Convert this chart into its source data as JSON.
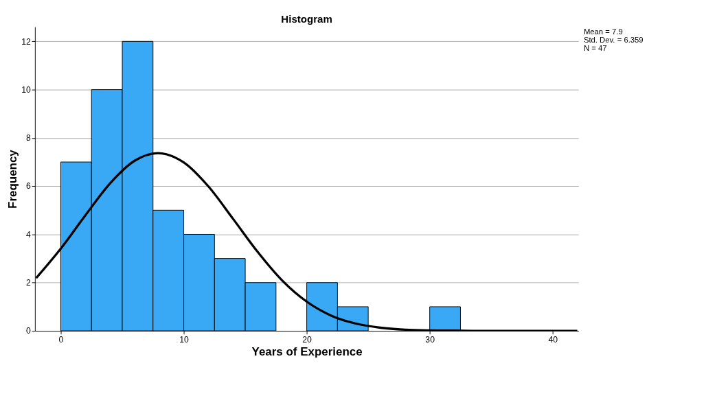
{
  "chart_data": {
    "type": "histogram",
    "title": "Histogram",
    "xlabel": "Years of Experience",
    "ylabel": "Frequency",
    "bins": [
      0,
      2.5,
      5,
      7.5,
      10,
      12.5,
      15,
      17.5,
      20,
      22.5,
      25,
      27.5,
      30,
      32.5
    ],
    "values": [
      7,
      10,
      12,
      5,
      4,
      3,
      2,
      0,
      2,
      1,
      0,
      0,
      1
    ],
    "color": "#3aa9f5",
    "series": [
      {
        "type": "line",
        "color": "#000000",
        "x": [
          -2,
          0,
          2,
          4,
          6,
          7.9,
          10,
          12,
          14,
          16,
          18,
          20,
          22,
          24,
          26,
          28,
          30,
          32,
          34,
          36,
          38,
          40,
          42
        ],
        "values": [
          2.19,
          3.41,
          4.79,
          6.11,
          7.05,
          7.37,
          6.98,
          5.99,
          4.65,
          3.28,
          2.09,
          1.21,
          0.63,
          0.3,
          0.13,
          0.05,
          0.02,
          0.01,
          0,
          0,
          0,
          0,
          0
        ]
      }
    ],
    "xlim": [
      -2.1,
      42.1
    ],
    "xticks": [
      0,
      10,
      20,
      30,
      40
    ],
    "ylim": [
      0,
      12.6
    ],
    "yticks": [
      0,
      2,
      4,
      6,
      8,
      10,
      12
    ],
    "grid": "y",
    "annotations": [
      "Mean = 7.9",
      "Std. Dev. = 6.359",
      "N = 47"
    ]
  }
}
